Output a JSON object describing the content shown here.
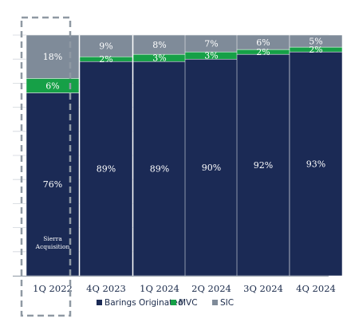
{
  "chart_data": {
    "type": "bar",
    "stacked": true,
    "percent_stacked": true,
    "categories": [
      "1Q 2022",
      "4Q 2023",
      "1Q 2024",
      "2Q 2024",
      "3Q 2024",
      "4Q 2024"
    ],
    "series": [
      {
        "name": "Barings Originated",
        "values": [
          76,
          89,
          89,
          90,
          92,
          93
        ],
        "labels": [
          "76%",
          "89%",
          "89%",
          "90%",
          "92%",
          "93%"
        ],
        "color": "#1b2a55"
      },
      {
        "name": "MVC",
        "values": [
          6,
          2,
          3,
          3,
          2,
          2
        ],
        "labels": [
          "6%",
          "2%",
          "3%",
          "3%",
          "2%",
          "2%"
        ],
        "color": "#16a047"
      },
      {
        "name": "SIC",
        "values": [
          18,
          9,
          8,
          7,
          6,
          5
        ],
        "labels": [
          "18%",
          "9%",
          "8%",
          "7%",
          "6%",
          "5%"
        ],
        "color": "#7f8b99"
      }
    ],
    "ylim": [
      0,
      100
    ],
    "grid": true,
    "legend": "bottom",
    "annotation": {
      "category": "1Q 2022",
      "text_lines": [
        "Sierra",
        "Acquisition"
      ]
    }
  },
  "colors": {
    "gridline": "#d0d5dc",
    "axis": "#9aa3ad",
    "highlight_border": "#8f99a3"
  }
}
